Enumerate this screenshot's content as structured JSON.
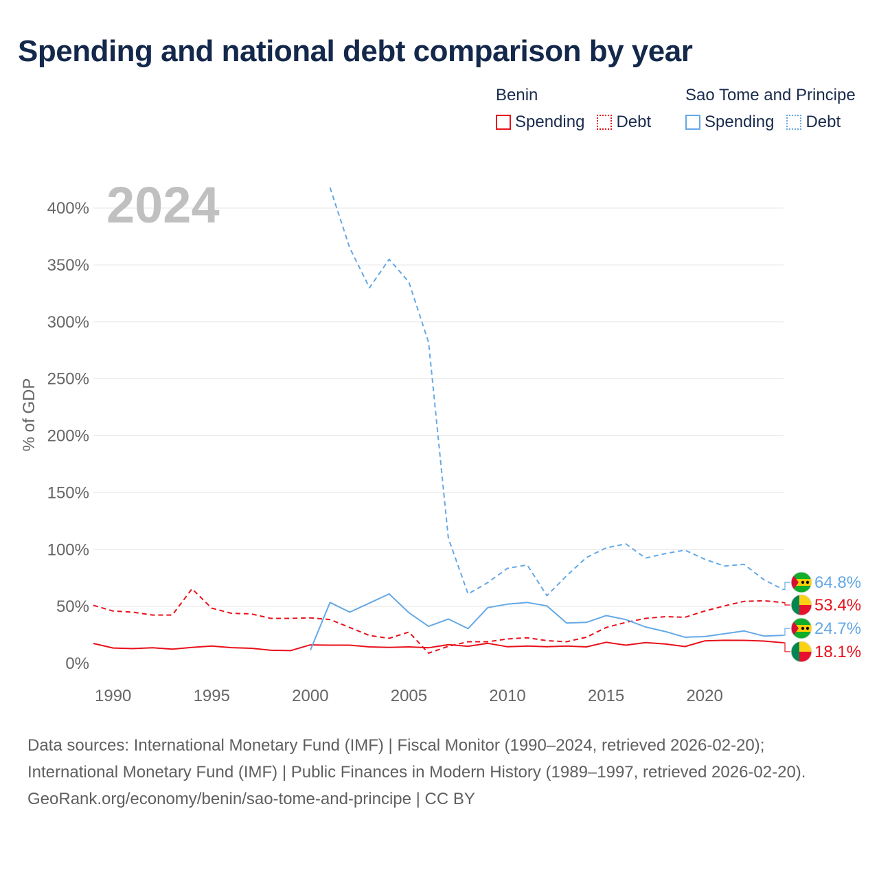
{
  "title": "Spending and national debt comparison by year",
  "legend": [
    {
      "country": "Benin",
      "color": "#e8101a",
      "items": [
        {
          "label": "Spending",
          "style": "solid"
        },
        {
          "label": "Debt",
          "style": "dotted"
        }
      ]
    },
    {
      "country": "Sao Tome and Principe",
      "color": "#64a8e6",
      "items": [
        {
          "label": "Spending",
          "style": "solid"
        },
        {
          "label": "Debt",
          "style": "dotted"
        }
      ]
    }
  ],
  "year_watermark": "2024",
  "footer": {
    "sources": "Data sources: International Monetary Fund (IMF) | Fiscal Monitor (1990–2024, retrieved 2026-02-20); International Monetary Fund (IMF) | Public Finances in Modern History (1989–1997, retrieved 2026-02-20).",
    "credit": "GeoRank.org/economy/benin/sao-tome-and-principe | CC BY"
  },
  "chart_data": {
    "type": "line",
    "title": "Spending and national debt comparison by year",
    "xlabel": "",
    "ylabel": "% of GDP",
    "xlim": [
      1989,
      2024
    ],
    "ylim": [
      0,
      420
    ],
    "xticks": [
      1990,
      1995,
      2000,
      2005,
      2010,
      2015,
      2020
    ],
    "xtick_labels": [
      "1990",
      "1995",
      "2000",
      "2005",
      "2010",
      "2015",
      "2020"
    ],
    "yticks": [
      0,
      50,
      100,
      150,
      200,
      250,
      300,
      350,
      400
    ],
    "ytick_labels": [
      "0%",
      "50%",
      "100%",
      "150%",
      "200%",
      "250%",
      "300%",
      "350%",
      "400%"
    ],
    "grid": true,
    "series": [
      {
        "name": "Benin Spending",
        "color": "#e8101a",
        "dash": "solid",
        "end_label": "18.1%",
        "x": [
          1989,
          1990,
          1991,
          1992,
          1993,
          1994,
          1995,
          1996,
          1997,
          1998,
          1999,
          2000,
          2001,
          2002,
          2003,
          2004,
          2005,
          2006,
          2007,
          2008,
          2009,
          2010,
          2011,
          2012,
          2013,
          2014,
          2015,
          2016,
          2017,
          2018,
          2019,
          2020,
          2021,
          2022,
          2023,
          2024
        ],
        "values": [
          17.5,
          13.5,
          13.0,
          13.7,
          12.5,
          14.0,
          15.2,
          13.8,
          13.3,
          11.5,
          11.2,
          16.2,
          16.0,
          16.0,
          14.5,
          14.0,
          14.5,
          13.7,
          16.5,
          15.0,
          17.6,
          14.6,
          15.2,
          14.6,
          15.2,
          14.5,
          18.5,
          16.0,
          18.2,
          17.0,
          14.8,
          19.7,
          20.3,
          20.2,
          19.6,
          18.1
        ]
      },
      {
        "name": "Benin Debt",
        "color": "#e8101a",
        "dash": "dashed",
        "end_label": "53.4%",
        "x": [
          1989,
          1990,
          1991,
          1992,
          1993,
          1994,
          1995,
          1996,
          1997,
          1998,
          1999,
          2000,
          2001,
          2002,
          2003,
          2004,
          2005,
          2006,
          2007,
          2008,
          2009,
          2010,
          2011,
          2012,
          2013,
          2014,
          2015,
          2016,
          2017,
          2018,
          2019,
          2020,
          2021,
          2022,
          2023,
          2024
        ],
        "values": [
          51.0,
          46.0,
          45.0,
          42.5,
          42.5,
          65.5,
          48.5,
          44.0,
          43.5,
          39.5,
          39.5,
          40.0,
          38.5,
          31.5,
          24.5,
          22.0,
          27.5,
          9.0,
          15.0,
          19.0,
          19.0,
          21.5,
          22.5,
          20.0,
          19.0,
          23.0,
          31.5,
          36.0,
          39.5,
          41.0,
          40.5,
          46.0,
          50.5,
          54.5,
          55.0,
          53.4
        ]
      },
      {
        "name": "Sao Tome and Principe Spending",
        "color": "#64a8e6",
        "dash": "solid",
        "end_label": "24.7%",
        "x": [
          2000,
          2001,
          2002,
          2003,
          2004,
          2005,
          2006,
          2007,
          2008,
          2009,
          2010,
          2011,
          2012,
          2013,
          2014,
          2015,
          2016,
          2017,
          2018,
          2019,
          2020,
          2021,
          2022,
          2023,
          2024
        ],
        "values": [
          11.5,
          53.5,
          45.0,
          53.0,
          61.0,
          44.5,
          32.5,
          39.0,
          30.5,
          49.0,
          52.0,
          53.5,
          50.5,
          35.5,
          36.0,
          42.0,
          38.5,
          32.0,
          28.0,
          23.0,
          23.5,
          26.0,
          28.5,
          24.0,
          24.7
        ]
      },
      {
        "name": "Sao Tome and Principe Debt",
        "color": "#64a8e6",
        "dash": "dashed",
        "end_label": "64.8%",
        "x": [
          2001,
          2002,
          2003,
          2004,
          2005,
          2006,
          2007,
          2008,
          2009,
          2010,
          2011,
          2012,
          2013,
          2014,
          2015,
          2016,
          2017,
          2018,
          2019,
          2020,
          2021,
          2022,
          2023,
          2024
        ],
        "values": [
          418.0,
          365.0,
          330.0,
          355.0,
          335.0,
          282.0,
          110.0,
          61.0,
          71.0,
          83.5,
          86.5,
          59.5,
          77.0,
          93.0,
          101.5,
          105.0,
          92.5,
          96.5,
          99.5,
          91.5,
          85.5,
          87.0,
          73.5,
          64.8
        ]
      }
    ]
  }
}
